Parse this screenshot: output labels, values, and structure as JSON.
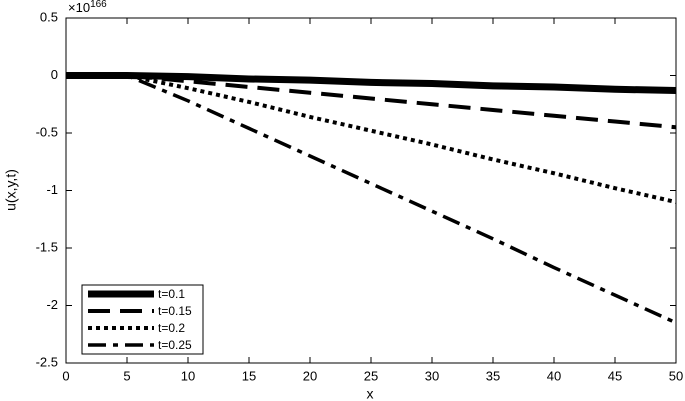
{
  "chart_data": {
    "type": "line",
    "x_label": "x",
    "y_label": "u(x,y,t)",
    "y_multiplier": {
      "base": "×10",
      "power": "166"
    },
    "x": [
      0,
      5,
      10,
      15,
      20,
      25,
      30,
      35,
      40,
      45,
      50
    ],
    "series": [
      {
        "name": "t=0.1",
        "color": "#000000",
        "linestyle": "solid",
        "values": [
          0,
          0,
          -0.01,
          -0.03,
          -0.04,
          -0.06,
          -0.07,
          -0.09,
          -0.1,
          -0.12,
          -0.13
        ]
      },
      {
        "name": "t=0.15",
        "color": "#000000",
        "linestyle": "dashed",
        "values": [
          0,
          0,
          -0.05,
          -0.1,
          -0.15,
          -0.2,
          -0.25,
          -0.3,
          -0.35,
          -0.4,
          -0.45
        ]
      },
      {
        "name": "t=0.2",
        "color": "#000000",
        "linestyle": "dotted",
        "values": [
          0,
          0,
          -0.11,
          -0.23,
          -0.36,
          -0.48,
          -0.6,
          -0.73,
          -0.85,
          -0.98,
          -1.1
        ]
      },
      {
        "name": "t=0.25",
        "color": "#000000",
        "linestyle": "dashdot",
        "values": [
          0,
          0,
          -0.22,
          -0.46,
          -0.7,
          -0.94,
          -1.18,
          -1.42,
          -1.67,
          -1.91,
          -2.15
        ]
      }
    ],
    "xlim": [
      0,
      50
    ],
    "xticks": [
      0,
      5,
      10,
      15,
      20,
      25,
      30,
      35,
      40,
      45,
      50
    ],
    "ylim": [
      -2.5,
      0.5
    ],
    "yticks": [
      -2.5,
      -2,
      -1.5,
      -1,
      -0.5,
      0,
      0.5
    ],
    "grid": false,
    "legend": "lower left"
  }
}
